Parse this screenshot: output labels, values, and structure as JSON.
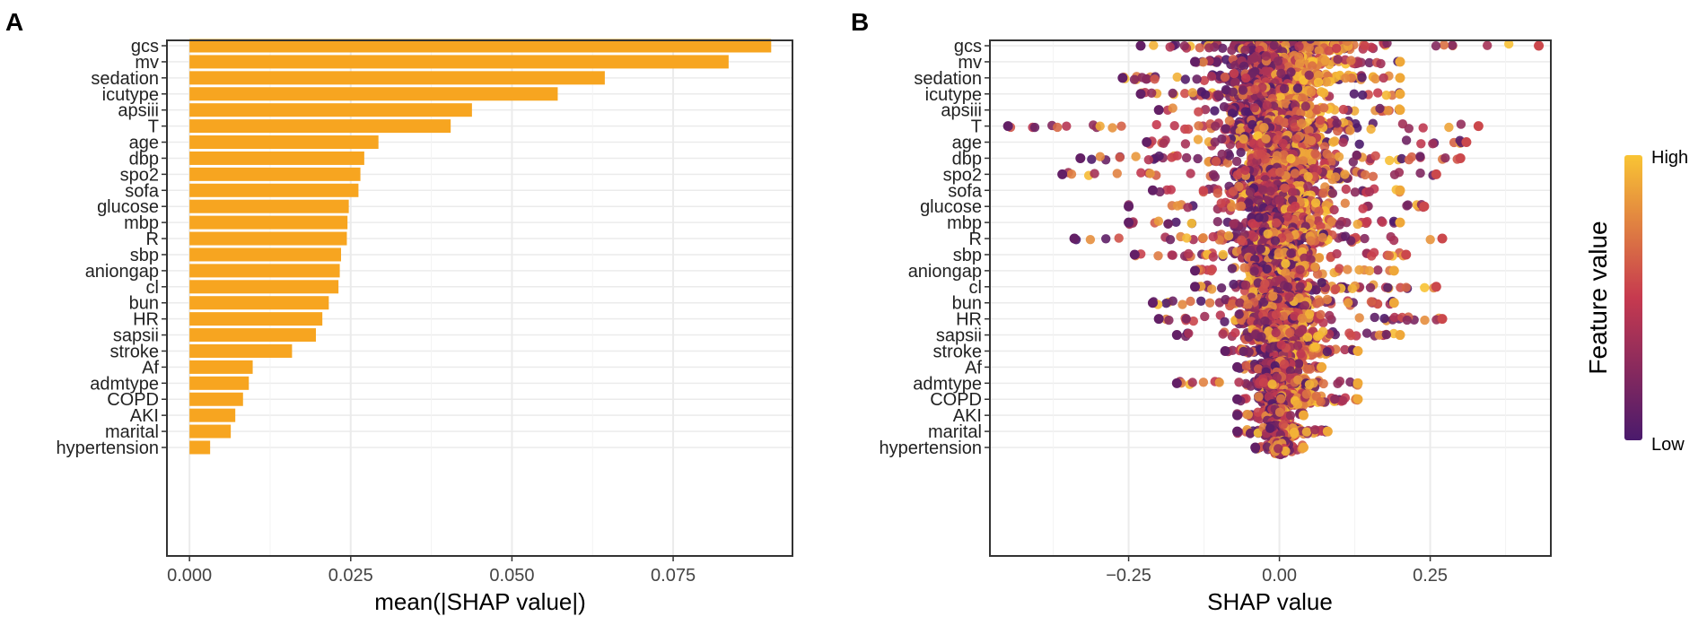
{
  "panels": [
    {
      "letter": "A",
      "type": "bar",
      "xlabel": "mean(|SHAP value|)",
      "xlim": [
        -0.0035,
        0.0935
      ],
      "xticks": [
        0.0,
        0.025,
        0.05,
        0.075
      ],
      "xtick_labels": [
        "0.000",
        "0.025",
        "0.050",
        "0.075"
      ],
      "bar_color": "#f7a520",
      "categories": [
        "gcs",
        "mv",
        "sedation",
        "icutype",
        "apsiii",
        "T",
        "age",
        "dbp",
        "spo2",
        "sofa",
        "glucose",
        "mbp",
        "R",
        "sbp",
        "aniongap",
        "cl",
        "bun",
        "HR",
        "sapsii",
        "stroke",
        "Af",
        "admtype",
        "COPD",
        "AKI",
        "marital",
        "hypertension"
      ],
      "values": [
        0.0902,
        0.0836,
        0.0644,
        0.0571,
        0.0438,
        0.0405,
        0.0293,
        0.0271,
        0.0265,
        0.0262,
        0.0247,
        0.0245,
        0.0244,
        0.0235,
        0.0233,
        0.0231,
        0.0216,
        0.0206,
        0.0196,
        0.0159,
        0.0098,
        0.0092,
        0.0083,
        0.0071,
        0.0064,
        0.0032
      ]
    },
    {
      "letter": "B",
      "type": "scatter",
      "xlabel": "SHAP value",
      "xlim": [
        -0.48,
        0.45
      ],
      "xticks": [
        -0.25,
        0.0,
        0.25
      ],
      "xtick_labels": [
        "−0.25",
        "0.00",
        "0.25"
      ],
      "categories": [
        "gcs",
        "mv",
        "sedation",
        "icutype",
        "apsiii",
        "T",
        "age",
        "dbp",
        "spo2",
        "sofa",
        "glucose",
        "mbp",
        "R",
        "sbp",
        "aniongap",
        "cl",
        "bun",
        "HR",
        "sapsii",
        "stroke",
        "Af",
        "admtype",
        "COPD",
        "AKI",
        "marital",
        "hypertension"
      ],
      "ranges": [
        [
          -0.23,
          0.43
        ],
        [
          -0.14,
          0.2
        ],
        [
          -0.26,
          0.2
        ],
        [
          -0.23,
          0.2
        ],
        [
          -0.2,
          0.2
        ],
        [
          -0.45,
          0.33
        ],
        [
          -0.22,
          0.31
        ],
        [
          -0.33,
          0.3
        ],
        [
          -0.36,
          0.26
        ],
        [
          -0.21,
          0.2
        ],
        [
          -0.25,
          0.24
        ],
        [
          -0.25,
          0.2
        ],
        [
          -0.34,
          0.27
        ],
        [
          -0.24,
          0.21
        ],
        [
          -0.14,
          0.19
        ],
        [
          -0.14,
          0.26
        ],
        [
          -0.21,
          0.19
        ],
        [
          -0.2,
          0.27
        ],
        [
          -0.17,
          0.2
        ],
        [
          -0.09,
          0.13
        ],
        [
          -0.07,
          0.07
        ],
        [
          -0.17,
          0.13
        ],
        [
          -0.07,
          0.13
        ],
        [
          -0.07,
          0.04
        ],
        [
          -0.07,
          0.08
        ],
        [
          -0.04,
          0.04
        ]
      ],
      "low_mean": [
        -0.05,
        -0.07,
        -0.08,
        -0.07,
        -0.05,
        0.0,
        -0.02,
        -0.02,
        -0.01,
        -0.02,
        -0.02,
        -0.02,
        -0.01,
        -0.01,
        -0.01,
        -0.01,
        -0.01,
        -0.01,
        -0.01,
        -0.01,
        -0.02,
        -0.01,
        -0.01,
        -0.01,
        -0.01,
        0.0
      ],
      "high_mean": [
        0.08,
        0.07,
        0.07,
        0.03,
        0.03,
        0.02,
        0.02,
        0.02,
        0.03,
        0.0,
        0.02,
        0.01,
        0.01,
        0.01,
        0.01,
        0.01,
        0.01,
        0.01,
        0.01,
        0.05,
        0.02,
        0.02,
        0.05,
        0.0,
        0.01,
        0.0
      ],
      "legend": {
        "title": "Feature value",
        "high_label": "High",
        "low_label": "Low",
        "high_color": "#f9c434",
        "mid_color": "#c63a4f",
        "low_color": "#4a1a6c"
      }
    }
  ]
}
